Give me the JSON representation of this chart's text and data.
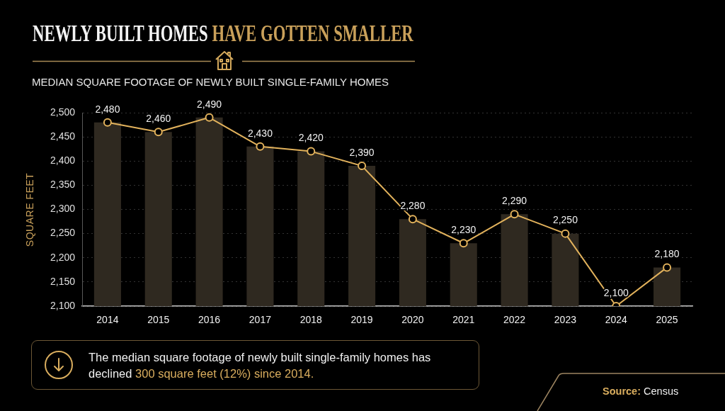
{
  "chart_data": {
    "type": "bar",
    "title": "NEWLY BUILT HOMES HAVE GOTTEN SMALLER",
    "subtitle": "MEDIAN SQUARE FOOTAGE OF NEWLY BUILT SINGLE-FAMILY HOMES",
    "ylabel": "SQUARE FEET",
    "categories": [
      "2014",
      "2015",
      "2016",
      "2017",
      "2018",
      "2019",
      "2020",
      "2021",
      "2022",
      "2023",
      "2024",
      "2025"
    ],
    "series": [
      {
        "color": "#2f2920",
        "values": [
          2480,
          2460,
          2490,
          2430,
          2420,
          2390,
          2280,
          2230,
          2290,
          2250,
          2100,
          2180
        ]
      },
      {
        "type": "line",
        "color": "#e2b25c",
        "marker": "circle",
        "values": [
          2480,
          2460,
          2490,
          2430,
          2420,
          2390,
          2280,
          2230,
          2290,
          2250,
          2100,
          2180
        ],
        "value_labels": [
          "2,480",
          "2,460",
          "2,490",
          "2,430",
          "2,420",
          "2,390",
          "2,280",
          "2,230",
          "2,290",
          "2,250",
          "2,100",
          "2,180"
        ]
      }
    ],
    "ylim": [
      2100,
      2500
    ],
    "yticks": [
      {
        "value": 2100,
        "label": "2,100"
      },
      {
        "value": 2150,
        "label": "2,150"
      },
      {
        "value": 2200,
        "label": "2,200"
      },
      {
        "value": 2250,
        "label": "2,250"
      },
      {
        "value": 2300,
        "label": "2,300"
      },
      {
        "value": 2350,
        "label": "2,350"
      },
      {
        "value": 2400,
        "label": "2,400"
      },
      {
        "value": 2450,
        "label": "2,450"
      },
      {
        "value": 2500,
        "label": "2,500"
      }
    ],
    "grid": "y",
    "annotations": [
      "The median square footage of newly built single-family homes has declined 300 square feet (12%) since 2014.",
      "Source: Census"
    ]
  }
}
